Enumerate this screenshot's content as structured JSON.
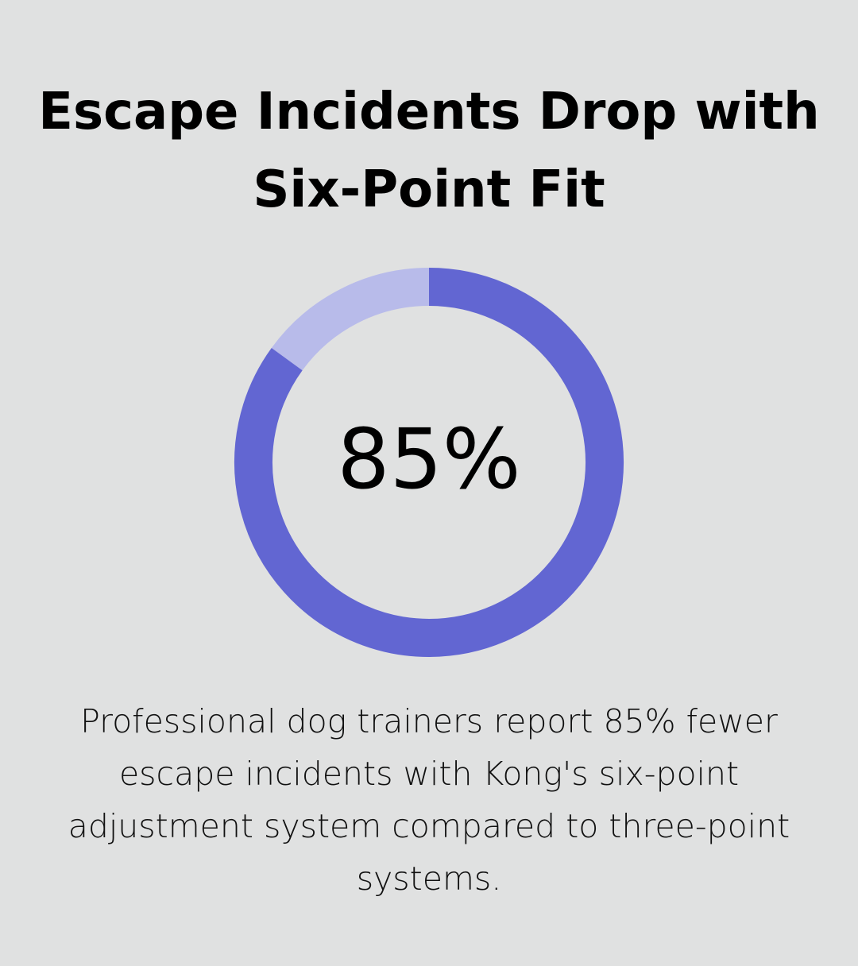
{
  "chart_data": {
    "type": "donut",
    "title": "Escape Incidents Drop with Six-Point Fit",
    "values": [
      85
    ],
    "value_labels": [
      "85%"
    ],
    "ylim": [
      0,
      100
    ],
    "color": "#6266d2",
    "track_color": "#b8bbea",
    "description": "Professional dog trainers report 85% fewer escape incidents with Kong's six-point adjustment system compared to three-point systems."
  }
}
